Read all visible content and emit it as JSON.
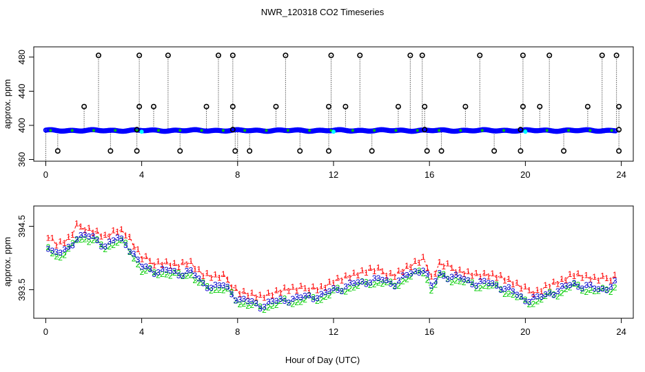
{
  "chart_data": [
    {
      "type": "scatter",
      "title": "NWR_120318  CO2 Timeseries",
      "ylabel": "approx. ppm",
      "xlabel": "",
      "xlim": [
        -0.5,
        24.5
      ],
      "ylim": [
        358,
        492
      ],
      "x_ticks": [
        0,
        4,
        8,
        12,
        16,
        20,
        24
      ],
      "y_ticks": [
        360,
        400,
        440,
        480
      ],
      "baseline_value": 394,
      "baseline_color": "#0000ff",
      "points_high_482": [
        2.2,
        3.9,
        5.1,
        7.2,
        7.8,
        10.0,
        11.9,
        13.1,
        15.2,
        15.7,
        18.1,
        19.9,
        21.0,
        23.2,
        23.8
      ],
      "points_high_422": [
        1.6,
        3.9,
        4.5,
        6.7,
        7.8,
        9.6,
        11.8,
        12.5,
        14.7,
        15.8,
        17.5,
        19.9,
        20.6,
        22.6,
        23.9
      ],
      "points_low_370": [
        0.5,
        2.7,
        3.8,
        5.6,
        7.9,
        8.5,
        10.6,
        11.8,
        13.6,
        15.9,
        16.5,
        18.7,
        19.8,
        21.6,
        23.9
      ],
      "points_mid_395": [
        3.8,
        7.8,
        15.8,
        19.8,
        23.9
      ],
      "marker_color": "#000000",
      "series_colors": [
        "#0000ff",
        "#00ffff",
        "#ff0000",
        "#00bb00"
      ]
    },
    {
      "type": "line",
      "title": "",
      "ylabel": "approx. ppm",
      "xlabel": "Hour of Day (UTC)",
      "xlim": [
        -0.5,
        24.5
      ],
      "ylim": [
        393.05,
        394.82
      ],
      "x_ticks": [
        0,
        4,
        8,
        12,
        16,
        20,
        24
      ],
      "y_ticks": [
        393.5,
        394.5
      ],
      "series": [
        {
          "name": "1",
          "label": "1",
          "color": "#ff0000",
          "offset": 0.1
        },
        {
          "name": "2",
          "label": "2",
          "color": "#00cc00",
          "offset": -0.04
        },
        {
          "name": "3",
          "label": "3",
          "color": "#0000cc",
          "offset": 0.0
        }
      ],
      "base_curve_x": [
        0.1,
        0.5,
        1.0,
        1.3,
        1.6,
        2.0,
        2.5,
        3.0,
        3.3,
        3.6,
        4.0,
        4.5,
        5.0,
        5.5,
        6.0,
        6.5,
        7.0,
        7.5,
        8.0,
        8.5,
        9.0,
        9.5,
        10.0,
        10.5,
        11.0,
        11.5,
        12.0,
        12.5,
        13.0,
        13.5,
        14.0,
        14.5,
        15.0,
        15.5,
        15.8,
        16.1,
        16.4,
        17.0,
        17.5,
        18.0,
        18.5,
        19.0,
        19.5,
        20.0,
        20.5,
        21.0,
        21.5,
        22.0,
        22.5,
        23.0,
        23.5,
        23.8
      ],
      "base_curve_y": [
        394.2,
        394.05,
        394.15,
        394.35,
        394.35,
        394.3,
        394.2,
        394.3,
        394.25,
        394.1,
        393.85,
        393.8,
        393.8,
        393.75,
        393.8,
        393.6,
        393.55,
        393.55,
        393.35,
        393.3,
        393.25,
        393.3,
        393.35,
        393.35,
        393.4,
        393.4,
        393.5,
        393.55,
        393.6,
        393.65,
        393.65,
        393.6,
        393.7,
        393.8,
        393.85,
        393.5,
        393.75,
        393.7,
        393.65,
        393.6,
        393.6,
        393.55,
        393.45,
        393.35,
        393.35,
        393.45,
        393.5,
        393.6,
        393.55,
        393.5,
        393.55,
        393.6
      ]
    }
  ]
}
